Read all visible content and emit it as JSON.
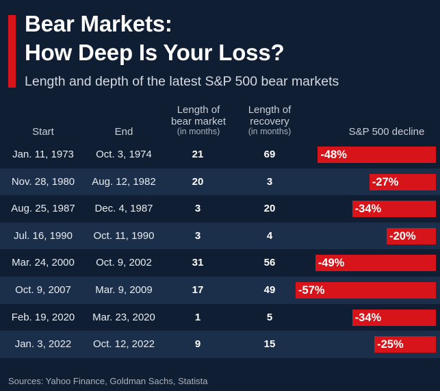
{
  "header": {
    "title_line1": "Bear Markets:",
    "title_line2": "How Deep Is Your Loss?",
    "subtitle": "Length and depth of the latest S&P 500 bear markets"
  },
  "columns": {
    "start": "Start",
    "end": "End",
    "length_l1": "Length of",
    "length_l2": "bear market",
    "length_unit": "(in months)",
    "recovery_l1": "Length of",
    "recovery_l2": "recovery",
    "recovery_unit": "(in months)",
    "decline": "S&P 500 decline"
  },
  "chart_data": {
    "type": "table",
    "title": "Bear Markets: How Deep Is Your Loss?",
    "subtitle": "Length and depth of the latest S&P 500 bear markets",
    "columns": [
      "Start",
      "End",
      "Length of bear market (in months)",
      "Length of recovery (in months)",
      "S&P 500 decline"
    ],
    "rows": [
      {
        "start": "Jan. 11, 1973",
        "end": "Oct. 3, 1974",
        "length": "21",
        "recovery": "69",
        "decline": -48,
        "decline_label": "-48%"
      },
      {
        "start": "Nov. 28, 1980",
        "end": "Aug. 12, 1982",
        "length": "20",
        "recovery": "3",
        "decline": -27,
        "decline_label": "-27%"
      },
      {
        "start": "Aug. 25, 1987",
        "end": "Dec. 4, 1987",
        "length": "3",
        "recovery": "20",
        "decline": -34,
        "decline_label": "-34%"
      },
      {
        "start": "Jul. 16, 1990",
        "end": "Oct. 11, 1990",
        "length": "3",
        "recovery": "4",
        "decline": -20,
        "decline_label": "-20%"
      },
      {
        "start": "Mar. 24, 2000",
        "end": "Oct. 9, 2002",
        "length": "31",
        "recovery": "56",
        "decline": -49,
        "decline_label": "-49%"
      },
      {
        "start": "Oct. 9, 2007",
        "end": "Mar. 9, 2009",
        "length": "17",
        "recovery": "49",
        "decline": -57,
        "decline_label": "-57%"
      },
      {
        "start": "Feb. 19, 2020",
        "end": "Mar. 23, 2020",
        "length": "1",
        "recovery": "5",
        "decline": -34,
        "decline_label": "-34%"
      },
      {
        "start": "Jan. 3, 2022",
        "end": "Oct. 12, 2022",
        "length": "9",
        "recovery": "15",
        "decline": -25,
        "decline_label": "-25%"
      }
    ]
  },
  "colors": {
    "background": "#0f1e33",
    "row_alt": "#1b2f4b",
    "accent": "#d7141a"
  },
  "footer": {
    "source": "Sources: Yahoo Finance, Goldman Sachs, Statista"
  }
}
